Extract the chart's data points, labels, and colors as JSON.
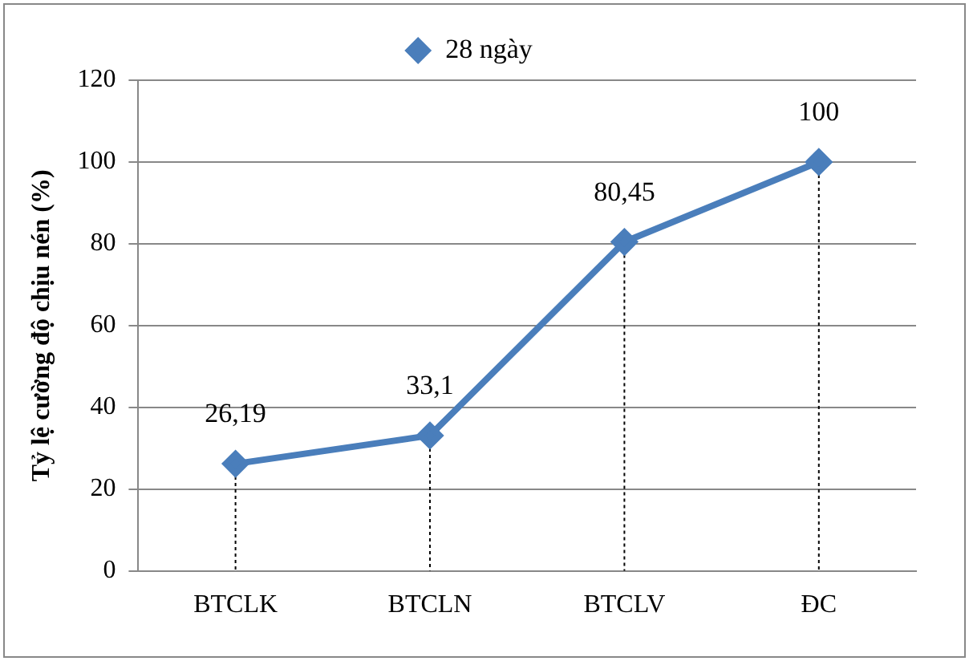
{
  "chart_data": {
    "type": "line",
    "ylabel": "Tỷ lệ cường độ chịu nén (%)",
    "categories": [
      "BTCLK",
      "BTCLN",
      "BTCLV",
      "ĐC"
    ],
    "series": [
      {
        "name": "28 ngày",
        "color": "#4a7ebb",
        "values": [
          26.19,
          33.1,
          80.45,
          100
        ],
        "value_labels": [
          "26,19",
          "33,1",
          "80,45",
          "100"
        ],
        "errors": [
          [
            0,
            26.19
          ],
          [
            0,
            33.1
          ],
          [
            0,
            80.45
          ],
          [
            0,
            100
          ]
        ]
      }
    ],
    "ylim": [
      0,
      120
    ],
    "yticks": [
      0,
      20,
      40,
      60,
      80,
      100,
      120
    ],
    "grid": "y",
    "legend": "top",
    "marker": "diamond",
    "line_style": "solid"
  }
}
